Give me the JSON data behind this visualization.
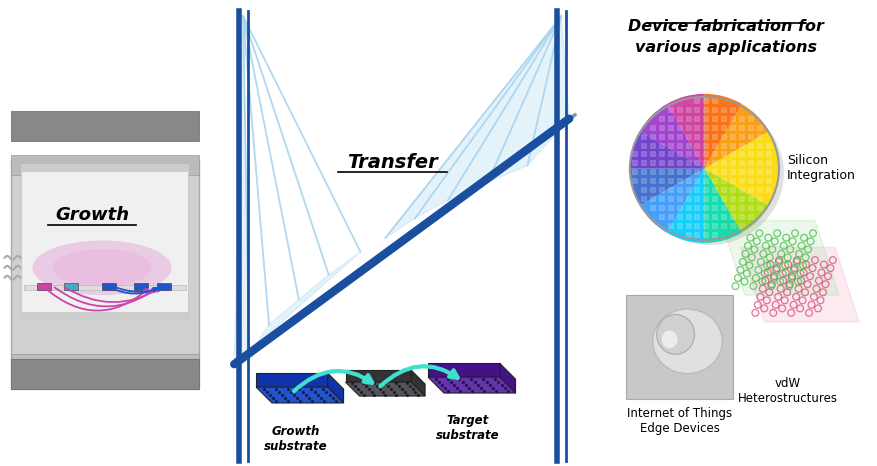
{
  "bg_color": "#ffffff",
  "section_labels": {
    "growth": "Growth",
    "transfer": "Transfer",
    "device": "Device fabrication for\nvarious applications"
  },
  "sub_labels": {
    "growth_substrate": "Growth\nsubstrate",
    "target_substrate": "Target\nsubstrate",
    "silicon": "Silicon\nIntegration",
    "iot": "Internet of Things\nEdge Devices",
    "vdw": "vdW\nHeterostructures"
  },
  "bridge_color": "#1a4fa0",
  "bridge_fill": "#a8d4f0",
  "cyan_arc": "#40e0d0",
  "furnace": {
    "outer_color": "#888888",
    "inner_color": "#cccccc",
    "tube_color": "#e8e8e8",
    "glow_color": "#e8a0e0"
  },
  "substrate_colors": {
    "growth": "#2255cc",
    "middle": "#555555",
    "target": "#6633aa"
  },
  "wafer_colors": [
    "#ffdd00",
    "#ff9900",
    "#ff6600",
    "#cc3399",
    "#9933cc",
    "#6633cc",
    "#3366cc",
    "#3399ff",
    "#00ccff",
    "#00ddaa",
    "#aadd00",
    "#ffdd00"
  ]
}
